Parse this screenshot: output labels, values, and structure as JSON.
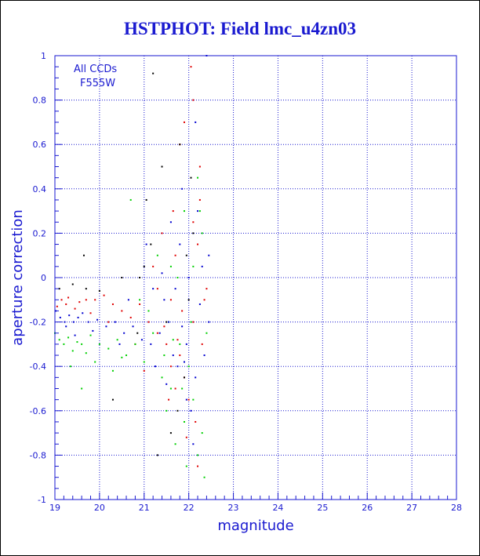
{
  "chart_data": {
    "type": "scatter",
    "title": "HSTPHOT: Field lmc_u4zn03",
    "xlabel": "magnitude",
    "ylabel": "aperture correction",
    "xlim": [
      19,
      28
    ],
    "ylim": [
      -1,
      1
    ],
    "x_ticks": [
      "19",
      "20",
      "21",
      "22",
      "23",
      "24",
      "25",
      "26",
      "27",
      "28"
    ],
    "y_ticks": [
      "1",
      "0.8",
      "0.6",
      "0.4",
      "0.2",
      "0",
      "-0.2",
      "-0.4",
      "-0.6",
      "-0.8",
      "-1"
    ],
    "grid": true,
    "annotations": [
      "All CCDs",
      "F555W"
    ],
    "colors": {
      "axis": "#1a1ad0",
      "grid": "#1a1ad0",
      "red": "#e00000",
      "green": "#00d000",
      "blue": "#0000d0",
      "black": "#000000"
    },
    "series": [
      {
        "color": "#e00000",
        "points": [
          [
            19.05,
            -0.13
          ],
          [
            19.15,
            -0.1
          ],
          [
            19.25,
            -0.12
          ],
          [
            19.3,
            -0.09
          ],
          [
            19.45,
            -0.14
          ],
          [
            19.55,
            -0.11
          ],
          [
            19.7,
            -0.1
          ],
          [
            19.9,
            -0.1
          ],
          [
            20.1,
            -0.08
          ],
          [
            20.3,
            -0.12
          ],
          [
            20.5,
            -0.15
          ],
          [
            20.7,
            -0.18
          ],
          [
            20.9,
            -0.12
          ],
          [
            21.1,
            -0.2
          ],
          [
            21.3,
            -0.25
          ],
          [
            21.5,
            -0.3
          ],
          [
            21.6,
            -0.4
          ],
          [
            21.7,
            -0.5
          ],
          [
            21.8,
            -0.35
          ],
          [
            21.9,
            -0.45
          ],
          [
            22.0,
            -0.55
          ],
          [
            22.1,
            -0.2
          ],
          [
            22.15,
            -0.65
          ],
          [
            22.2,
            0.15
          ],
          [
            22.25,
            0.35
          ],
          [
            21.9,
            0.7
          ],
          [
            22.1,
            0.8
          ],
          [
            21.7,
            0.1
          ],
          [
            21.4,
            0.2
          ],
          [
            21.2,
            0.05
          ],
          [
            22.3,
            -0.3
          ],
          [
            22.35,
            -0.1
          ],
          [
            21.8,
            0.6
          ],
          [
            22.05,
            0.95
          ],
          [
            21.95,
            -0.72
          ],
          [
            22.2,
            -0.85
          ],
          [
            21.6,
            -0.1
          ],
          [
            21.45,
            -0.22
          ],
          [
            21.75,
            -0.28
          ],
          [
            21.85,
            -0.15
          ],
          [
            22.4,
            -0.05
          ],
          [
            21.3,
            -0.05
          ],
          [
            20.8,
            -0.3
          ],
          [
            21.0,
            -0.42
          ],
          [
            21.55,
            -0.55
          ],
          [
            22.25,
            0.5
          ],
          [
            21.65,
            0.3
          ],
          [
            22.1,
            0.25
          ],
          [
            19.8,
            -0.16
          ],
          [
            20.2,
            -0.2
          ]
        ]
      },
      {
        "color": "#00d000",
        "points": [
          [
            19.0,
            -0.25
          ],
          [
            19.1,
            -0.28
          ],
          [
            19.2,
            -0.3
          ],
          [
            19.3,
            -0.27
          ],
          [
            19.4,
            -0.33
          ],
          [
            19.5,
            -0.29
          ],
          [
            19.6,
            -0.3
          ],
          [
            19.8,
            -0.26
          ],
          [
            20.0,
            -0.3
          ],
          [
            20.2,
            -0.32
          ],
          [
            20.4,
            -0.28
          ],
          [
            20.6,
            -0.35
          ],
          [
            20.8,
            -0.3
          ],
          [
            21.0,
            -0.38
          ],
          [
            21.2,
            -0.25
          ],
          [
            21.4,
            -0.45
          ],
          [
            21.5,
            -0.6
          ],
          [
            21.6,
            -0.5
          ],
          [
            21.7,
            -0.75
          ],
          [
            21.8,
            -0.3
          ],
          [
            21.9,
            -0.65
          ],
          [
            22.0,
            -0.4
          ],
          [
            22.1,
            -0.55
          ],
          [
            22.2,
            -0.8
          ],
          [
            22.3,
            -0.7
          ],
          [
            21.3,
            0.1
          ],
          [
            21.6,
            0.05
          ],
          [
            22.1,
            0.05
          ],
          [
            22.3,
            0.2
          ],
          [
            22.2,
            0.45
          ],
          [
            21.9,
            0.3
          ],
          [
            21.75,
            0.0
          ],
          [
            19.35,
            -0.4
          ],
          [
            19.6,
            -0.5
          ],
          [
            20.7,
            0.35
          ],
          [
            20.9,
            -0.1
          ],
          [
            21.1,
            -0.15
          ],
          [
            22.35,
            -0.9
          ],
          [
            21.95,
            -0.85
          ],
          [
            22.4,
            -0.25
          ],
          [
            21.45,
            -0.35
          ],
          [
            21.65,
            -0.28
          ],
          [
            21.85,
            -0.5
          ],
          [
            22.05,
            -0.2
          ],
          [
            20.3,
            -0.42
          ],
          [
            20.5,
            -0.36
          ],
          [
            19.7,
            -0.34
          ],
          [
            19.9,
            -0.38
          ],
          [
            22.25,
            0.3
          ],
          [
            21.55,
            -0.2
          ]
        ]
      },
      {
        "color": "#0000d0",
        "points": [
          [
            19.02,
            -0.15
          ],
          [
            19.12,
            -0.18
          ],
          [
            19.22,
            -0.2
          ],
          [
            19.32,
            -0.17
          ],
          [
            19.42,
            -0.2
          ],
          [
            19.52,
            -0.18
          ],
          [
            19.62,
            -0.16
          ],
          [
            19.75,
            -0.2
          ],
          [
            19.95,
            -0.19
          ],
          [
            20.15,
            -0.22
          ],
          [
            20.35,
            -0.2
          ],
          [
            20.55,
            -0.25
          ],
          [
            20.75,
            -0.22
          ],
          [
            20.95,
            -0.28
          ],
          [
            21.15,
            -0.3
          ],
          [
            21.35,
            -0.25
          ],
          [
            21.45,
            -0.1
          ],
          [
            21.55,
            -0.2
          ],
          [
            21.65,
            -0.35
          ],
          [
            21.75,
            -0.4
          ],
          [
            21.85,
            -0.22
          ],
          [
            21.95,
            -0.3
          ],
          [
            22.05,
            -0.6
          ],
          [
            22.15,
            -0.45
          ],
          [
            22.25,
            -0.12
          ],
          [
            22.3,
            0.05
          ],
          [
            22.15,
            0.7
          ],
          [
            21.85,
            0.4
          ],
          [
            21.6,
            0.25
          ],
          [
            21.2,
            -0.05
          ],
          [
            22.4,
            1.0
          ],
          [
            22.45,
            0.1
          ],
          [
            21.05,
            0.15
          ],
          [
            21.25,
            -0.4
          ],
          [
            21.95,
            -0.55
          ],
          [
            22.1,
            -0.75
          ],
          [
            22.35,
            -0.35
          ],
          [
            21.7,
            -0.05
          ],
          [
            21.5,
            -0.48
          ],
          [
            20.65,
            -0.1
          ],
          [
            20.45,
            -0.3
          ],
          [
            19.85,
            -0.24
          ],
          [
            19.25,
            -0.22
          ],
          [
            19.45,
            -0.26
          ],
          [
            22.2,
            0.3
          ],
          [
            21.8,
            0.15
          ],
          [
            21.4,
            0.02
          ],
          [
            22.0,
            0.0
          ],
          [
            21.9,
            -0.38
          ],
          [
            22.45,
            -0.2
          ]
        ]
      },
      {
        "color": "#000000",
        "points": [
          [
            19.1,
            -0.05
          ],
          [
            19.4,
            -0.03
          ],
          [
            19.7,
            -0.05
          ],
          [
            20.0,
            -0.06
          ],
          [
            20.5,
            0.0
          ],
          [
            20.9,
            0.0
          ],
          [
            21.0,
            0.05
          ],
          [
            21.2,
            0.92
          ],
          [
            21.4,
            0.5
          ],
          [
            21.8,
            0.6
          ],
          [
            22.1,
            0.2
          ],
          [
            21.6,
            -0.7
          ],
          [
            21.3,
            -0.8
          ],
          [
            21.9,
            -0.45
          ],
          [
            22.0,
            -0.1
          ],
          [
            21.5,
            -0.2
          ],
          [
            19.65,
            0.1
          ],
          [
            21.15,
            0.15
          ],
          [
            20.85,
            -0.25
          ],
          [
            20.3,
            -0.55
          ],
          [
            21.75,
            -0.6
          ],
          [
            22.05,
            0.45
          ],
          [
            21.05,
            0.35
          ],
          [
            21.95,
            0.1
          ]
        ]
      }
    ]
  }
}
